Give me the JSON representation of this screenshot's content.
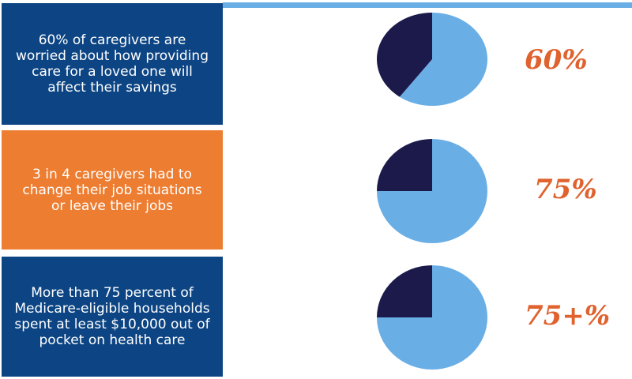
{
  "rows": [
    {
      "text": "60% of caregivers are worried about how providing care for a loved one will affect their savings",
      "value_label": "60%",
      "panel_color": "#0d4584"
    },
    {
      "text": "3 in 4 caregivers had to change their job situations or leave their jobs",
      "value_label": "75%",
      "panel_color": "#ed7d31"
    },
    {
      "text": "More than 75 percent of Medicare-eligible households spent at least $10,000 out of pocket on health care",
      "value_label": "75+%",
      "panel_color": "#0d4584"
    }
  ],
  "colors": {
    "pie_main": "#6aaee6",
    "pie_remainder": "#1b1a4a",
    "value_text": "#e0622e",
    "top_rule": "#6aaee6"
  },
  "chart_data": [
    {
      "type": "pie",
      "values": [
        60,
        40
      ]
    },
    {
      "type": "pie",
      "values": [
        75,
        25
      ]
    },
    {
      "type": "pie",
      "values": [
        75,
        25
      ]
    }
  ]
}
